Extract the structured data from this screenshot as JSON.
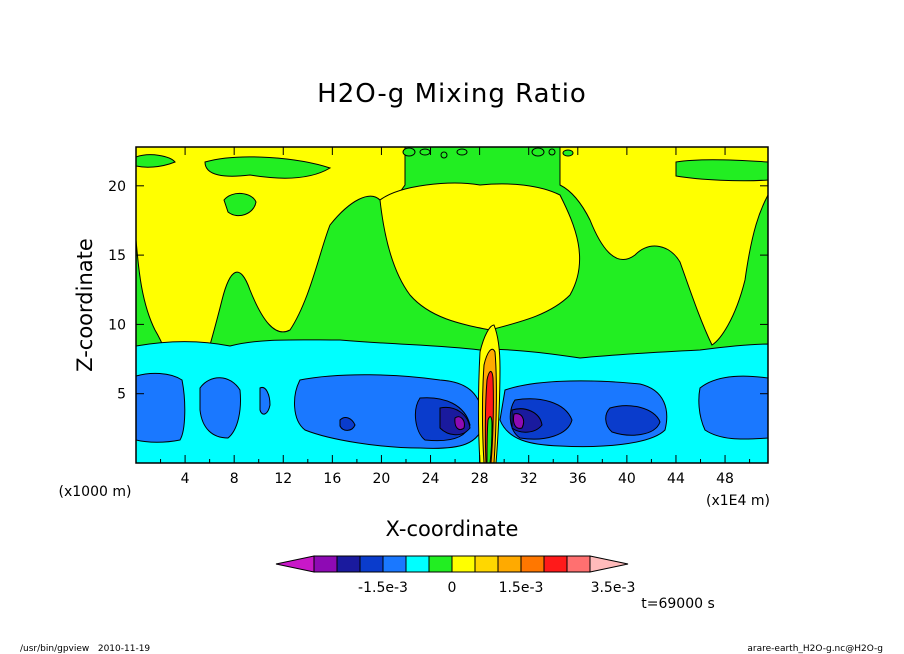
{
  "chart_data": {
    "type": "heatmap",
    "title": "H2O-g Mixing Ratio",
    "xlabel": "X-coordinate",
    "ylabel": "Z-coordinate",
    "x_unit": "(x1000 m)",
    "right_unit": "(x1E4 m)",
    "x_ticks": [
      "4",
      "8",
      "12",
      "16",
      "20",
      "24",
      "28",
      "32",
      "36",
      "40",
      "44",
      "48"
    ],
    "y_ticks": [
      "5",
      "10",
      "15",
      "20"
    ],
    "xlim": [
      0,
      51.5
    ],
    "ylim": [
      0,
      22.8
    ],
    "time_label": "t=69000 s",
    "footer_left": "/usr/bin/gpview   2010-11-19",
    "footer_right": "arare-earth_H2O-g.nc@H2O-g",
    "colorbar": {
      "colors": [
        "#c818c8",
        "#8e0ab4",
        "#1a1a9e",
        "#0a3ccc",
        "#1a78ff",
        "#00ffff",
        "#22ee22",
        "#ffff00",
        "#ffd700",
        "#ffaa00",
        "#ff7700",
        "#ff1a1a",
        "#ff7070",
        "#ffbbbb"
      ],
      "tick_labels": [
        "-1.5e-3",
        "0",
        "1.5e-3",
        "3.5e-3"
      ],
      "tick_values": [
        -0.0015,
        0,
        0.0015,
        0.0035
      ],
      "interval": 0.0005,
      "min": -0.003,
      "max": 0.0035
    }
  }
}
